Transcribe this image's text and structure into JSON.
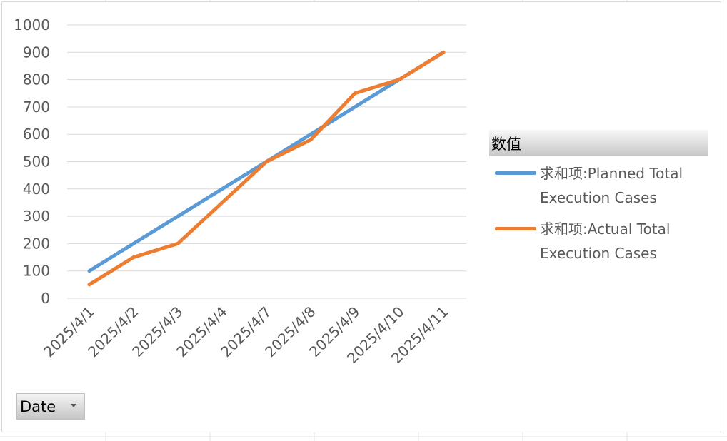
{
  "chart_data": {
    "type": "line",
    "categories": [
      "2025/4/1",
      "2025/4/2",
      "2025/4/3",
      "2025/4/4",
      "2025/4/7",
      "2025/4/8",
      "2025/4/9",
      "2025/4/10",
      "2025/4/11"
    ],
    "series": [
      {
        "name": "求和项:Planned Total Execution Cases",
        "values": [
          100,
          200,
          300,
          400,
          500,
          600,
          700,
          800,
          900
        ],
        "color": "#5b9bd5"
      },
      {
        "name": "求和项:Actual Total Execution Cases",
        "values": [
          50,
          150,
          200,
          350,
          500,
          580,
          750,
          800,
          900
        ],
        "color": "#ed7d31"
      }
    ],
    "ylim": [
      0,
      1000
    ],
    "yticks": [
      "0",
      "100",
      "200",
      "300",
      "400",
      "500",
      "600",
      "700",
      "800",
      "900",
      "1000"
    ],
    "grid": true,
    "legend_position": "right",
    "title": "",
    "xlabel": "",
    "ylabel": ""
  },
  "legend": {
    "header": "数值",
    "items": [
      {
        "line1": "求和项:Planned Total",
        "line2": "Execution Cases"
      },
      {
        "line1": "求和项:Actual Total",
        "line2": "Execution Cases"
      }
    ]
  },
  "field_button": {
    "label": "Date"
  }
}
